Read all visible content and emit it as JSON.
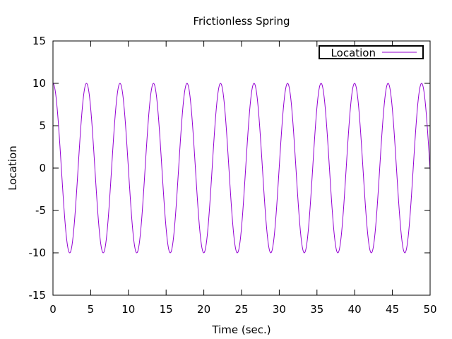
{
  "chart_data": {
    "type": "line",
    "title": "Frictionless Spring",
    "xlabel": "Time (sec.)",
    "ylabel": "Location",
    "xlim": [
      0,
      50
    ],
    "ylim": [
      -15,
      15
    ],
    "xticks": [
      0,
      5,
      10,
      15,
      20,
      25,
      30,
      35,
      40,
      45,
      50
    ],
    "yticks": [
      -15,
      -10,
      -5,
      0,
      5,
      10,
      15
    ],
    "grid": false,
    "legend_position": "top-right",
    "series": [
      {
        "name": "Location",
        "color": "#9400d3",
        "function": "10 * cos(1.4142 * t)",
        "amplitude": 10,
        "angular_frequency": 1.4142,
        "sample_points": [
          {
            "x": 0,
            "y": 10
          },
          {
            "x": 2.22,
            "y": -10
          },
          {
            "x": 4.44,
            "y": 10
          },
          {
            "x": 6.66,
            "y": -10
          },
          {
            "x": 8.89,
            "y": 10
          },
          {
            "x": 11.11,
            "y": -10
          },
          {
            "x": 13.33,
            "y": 10
          },
          {
            "x": 15.55,
            "y": -10
          },
          {
            "x": 17.77,
            "y": 10
          },
          {
            "x": 19.99,
            "y": -10
          },
          {
            "x": 22.21,
            "y": 10
          },
          {
            "x": 24.44,
            "y": -10
          },
          {
            "x": 26.66,
            "y": 10
          },
          {
            "x": 28.88,
            "y": -10
          },
          {
            "x": 31.1,
            "y": 10
          },
          {
            "x": 33.32,
            "y": -10
          },
          {
            "x": 35.54,
            "y": 10
          },
          {
            "x": 37.76,
            "y": -10
          },
          {
            "x": 39.99,
            "y": 10
          },
          {
            "x": 42.21,
            "y": -10
          },
          {
            "x": 44.43,
            "y": 10
          },
          {
            "x": 46.65,
            "y": -10
          },
          {
            "x": 48.87,
            "y": 10
          },
          {
            "x": 50,
            "y": 0
          }
        ]
      }
    ]
  }
}
